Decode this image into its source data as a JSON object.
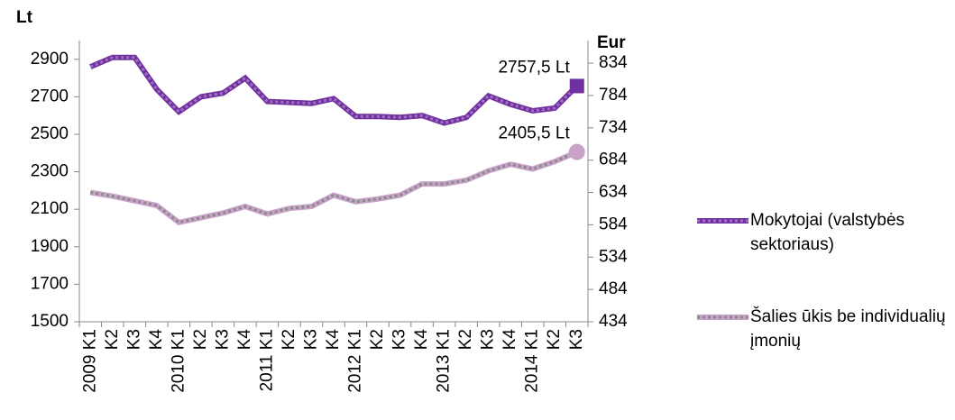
{
  "chart_data": {
    "type": "line",
    "y_axis_title": "Lt",
    "y2_axis_title": "Eur",
    "categories": [
      "2009 K1",
      "K2",
      "K3",
      "K4",
      "2010 K1",
      "K2",
      "K3",
      "K4",
      "2011 K1",
      "K2",
      "K3",
      "K4",
      "2012 K1",
      "K2",
      "K3",
      "K4",
      "2013 K1",
      "K2",
      "K3",
      "K4",
      "2014 K1",
      "K2",
      "K3"
    ],
    "series": [
      {
        "name": "Mokytojai (valstybės sektoriaus)",
        "color": "#7030a0",
        "dash_color": "#a070c0",
        "marker": "square",
        "values": [
          2860,
          2910,
          2910,
          2740,
          2620,
          2700,
          2720,
          2800,
          2675,
          2670,
          2665,
          2690,
          2595,
          2595,
          2590,
          2600,
          2560,
          2590,
          2705,
          2660,
          2625,
          2640,
          2757.5
        ],
        "value_labels": [
          null,
          null,
          null,
          null,
          null,
          null,
          null,
          null,
          null,
          null,
          null,
          null,
          null,
          null,
          null,
          null,
          null,
          null,
          null,
          null,
          null,
          null,
          "2757,5 Lt"
        ]
      },
      {
        "name": "Šalies ūkis be individualių įmonių",
        "color": "#c8a2c8",
        "dash_color": "#8a8a8a",
        "marker": "circle",
        "values": [
          2190,
          2170,
          2145,
          2120,
          2030,
          2055,
          2080,
          2115,
          2075,
          2105,
          2115,
          2175,
          2140,
          2155,
          2175,
          2235,
          2235,
          2255,
          2305,
          2340,
          2315,
          2355,
          2405.5
        ],
        "value_labels": [
          null,
          null,
          null,
          null,
          null,
          null,
          null,
          null,
          null,
          null,
          null,
          null,
          null,
          null,
          null,
          null,
          null,
          null,
          null,
          null,
          null,
          null,
          "2405,5 Lt"
        ]
      }
    ],
    "ylim": [
      1500,
      3000
    ],
    "yticks": [
      1500,
      1700,
      1900,
      2100,
      2300,
      2500,
      2700,
      2900
    ],
    "y2lim": [
      434,
      869
    ],
    "y2ticks": [
      434,
      484,
      534,
      584,
      634,
      684,
      734,
      784,
      834
    ],
    "grid": false,
    "legend": "right"
  }
}
